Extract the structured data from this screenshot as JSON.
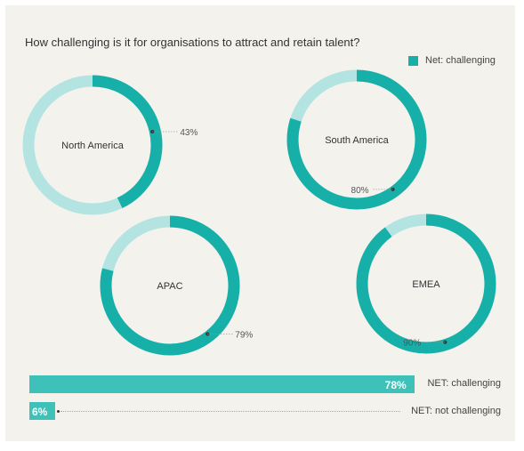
{
  "chart_data": {
    "type": "pie",
    "title": "How challenging is it for organisations to attract and retain talent?",
    "legend": {
      "label": "Net: challenging",
      "position": "top-right"
    },
    "colors": {
      "challenging": "#17b0a8",
      "not_challenging": "#b3e4e2",
      "bar_fill": "#3ec1b8"
    },
    "regions": [
      {
        "name": "North America",
        "value": 43,
        "value_label": "43%"
      },
      {
        "name": "South America",
        "value": 80,
        "value_label": "80%"
      },
      {
        "name": "APAC",
        "value": 79,
        "value_label": "79%"
      },
      {
        "name": "EMEA",
        "value": 90,
        "value_label": "90%"
      }
    ],
    "bars": [
      {
        "label": "NET: challenging",
        "value": 78,
        "value_label": "78%"
      },
      {
        "label": "NET: not challenging",
        "value": 6,
        "value_label": "6%"
      }
    ]
  }
}
